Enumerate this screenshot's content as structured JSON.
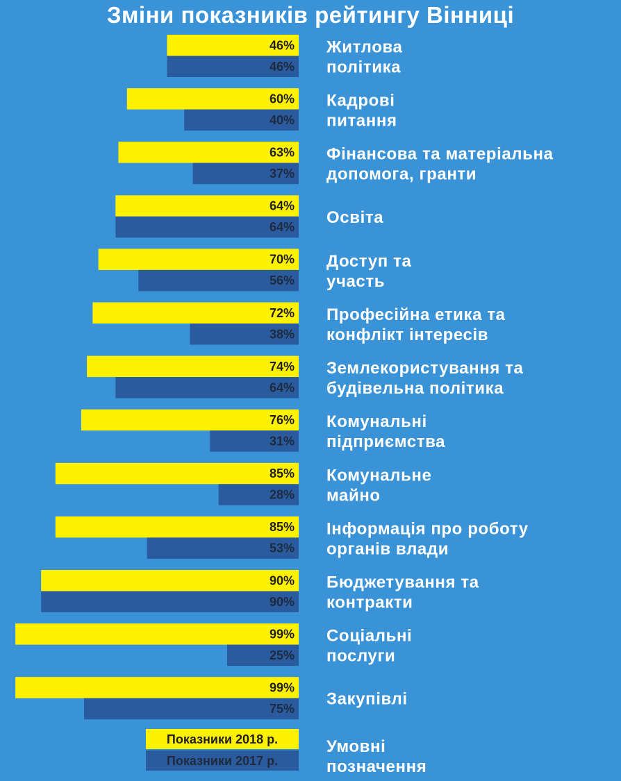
{
  "chart_data": {
    "type": "bar",
    "orientation": "horizontal",
    "title": "Зміни показників рейтингу Вінниці",
    "categories": [
      [
        "Житлова",
        "політика"
      ],
      [
        "Кадрові",
        "питання"
      ],
      [
        "Фінансова та матеріальна",
        "допомога, гранти"
      ],
      [
        "Освіта"
      ],
      [
        "Доступ та",
        "участь"
      ],
      [
        "Професійна етика та",
        "конфлікт інтересів"
      ],
      [
        "Землекористування та",
        "будівельна політика"
      ],
      [
        "Комунальні",
        "підприємства"
      ],
      [
        "Комунальне",
        "майно"
      ],
      [
        "Інформація про роботу",
        "органів влади"
      ],
      [
        "Бюджетування та",
        "контракти"
      ],
      [
        "Соціальні",
        "послуги"
      ],
      [
        "Закупівлі"
      ]
    ],
    "series": [
      {
        "name": "Показники 2018 р.",
        "color": "#fff200",
        "text_color": "#1f1f1f",
        "values": [
          46,
          60,
          63,
          64,
          70,
          72,
          74,
          76,
          85,
          85,
          90,
          99,
          99
        ],
        "labels": [
          "46%",
          "60%",
          "63%",
          "64%",
          "70%",
          "72%",
          "74%",
          "76%",
          "85%",
          "85%",
          "90%",
          "99%",
          "99%"
        ]
      },
      {
        "name": "Показники 2017 р.",
        "color": "#2a5b9e",
        "text_color": "#1f2a3d",
        "values": [
          46,
          40,
          37,
          64,
          56,
          38,
          64,
          31,
          28,
          53,
          90,
          25,
          75
        ],
        "labels": [
          "46%",
          "40%",
          "37%",
          "64%",
          "56%",
          "38%",
          "64%",
          "31%",
          "28%",
          "53%",
          "90%",
          "25%",
          "75%"
        ]
      }
    ],
    "xlim": [
      0,
      100
    ],
    "legend": {
      "title": [
        "Умовні",
        "позначення"
      ],
      "placement": "bottom"
    }
  }
}
